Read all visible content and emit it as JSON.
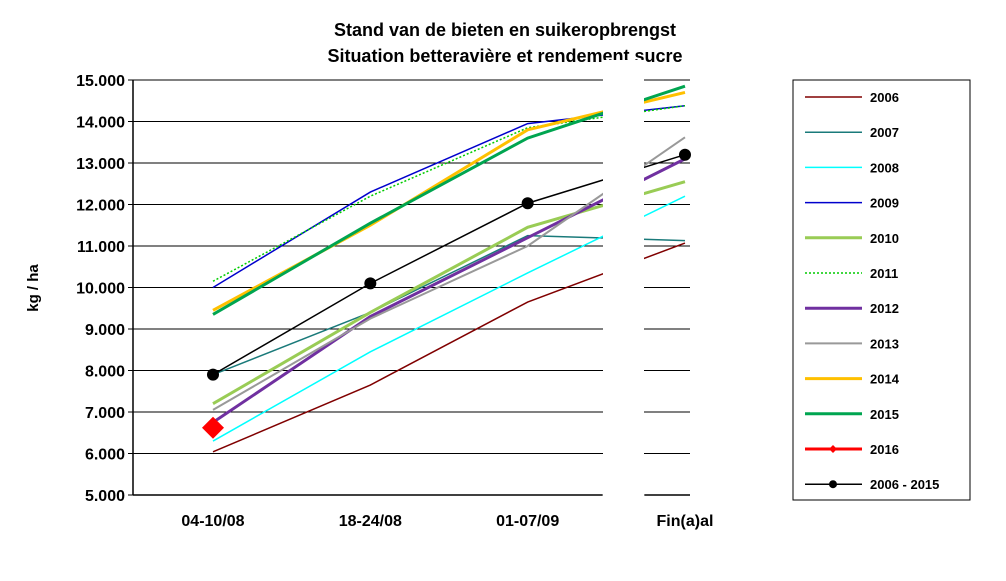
{
  "chart_data": {
    "type": "line",
    "title": "Stand van de bieten en suikeropbrengst",
    "subtitle": "Situation betteravière et rendement sucre",
    "y_label": "kg / ha",
    "categories": [
      "04-10/08",
      "18-24/08",
      "01-07/09",
      "Fin(a)al"
    ],
    "ylim": [
      5000,
      15000
    ],
    "yticks": [
      {
        "value": 5000,
        "label": "5.000"
      },
      {
        "value": 6000,
        "label": "6.000"
      },
      {
        "value": 7000,
        "label": "7.000"
      },
      {
        "value": 8000,
        "label": "8.000"
      },
      {
        "value": 9000,
        "label": "9.000"
      },
      {
        "value": 10000,
        "label": "10.000"
      },
      {
        "value": 11000,
        "label": "11.000"
      },
      {
        "value": 12000,
        "label": "12.000"
      },
      {
        "value": 13000,
        "label": "13.000"
      },
      {
        "value": 14000,
        "label": "14.000"
      },
      {
        "value": 15000,
        "label": "15.000"
      }
    ],
    "grid": true,
    "legend": "right",
    "series": [
      {
        "name": "2006",
        "color": "#800000",
        "line_width": 1.5,
        "values": [
          6040,
          7650,
          9650,
          11070
        ]
      },
      {
        "name": "2007",
        "color": "#1a7a7a",
        "line_width": 1.5,
        "values": [
          7900,
          9400,
          11250,
          11130
        ]
      },
      {
        "name": "2008",
        "color": "#00ffff",
        "line_width": 1.5,
        "values": [
          6300,
          8450,
          10350,
          12200
        ]
      },
      {
        "name": "2009",
        "color": "#0000cc",
        "line_width": 1.5,
        "values": [
          10000,
          12300,
          13950,
          14380
        ]
      },
      {
        "name": "2010",
        "color": "#99cc55",
        "line_width": 3,
        "values": [
          7200,
          9400,
          11450,
          12550
        ]
      },
      {
        "name": "2011",
        "color": "#00cc00",
        "line_width": 1.5,
        "style": "dotted",
        "values": [
          10150,
          12200,
          13850,
          14380
        ]
      },
      {
        "name": "2012",
        "color": "#7030a0",
        "line_width": 3,
        "values": [
          6750,
          9300,
          11200,
          13100
        ]
      },
      {
        "name": "2013",
        "color": "#999999",
        "line_width": 2,
        "values": [
          7050,
          9250,
          11000,
          13620
        ]
      },
      {
        "name": "2014",
        "color": "#ffc000",
        "line_width": 3,
        "values": [
          9450,
          11500,
          13800,
          14700
        ]
      },
      {
        "name": "2015",
        "color": "#00a550",
        "line_width": 3,
        "values": [
          9350,
          11550,
          13600,
          14850
        ]
      },
      {
        "name": "2016",
        "color": "#ff0000",
        "line_width": 3,
        "marker": "diamond",
        "values": [
          6620,
          null,
          null,
          null
        ]
      },
      {
        "name": "2006 - 2015",
        "color": "#000000",
        "line_width": 1.5,
        "marker": "circle",
        "values": [
          7900,
          10100,
          12030,
          13200
        ]
      }
    ]
  }
}
